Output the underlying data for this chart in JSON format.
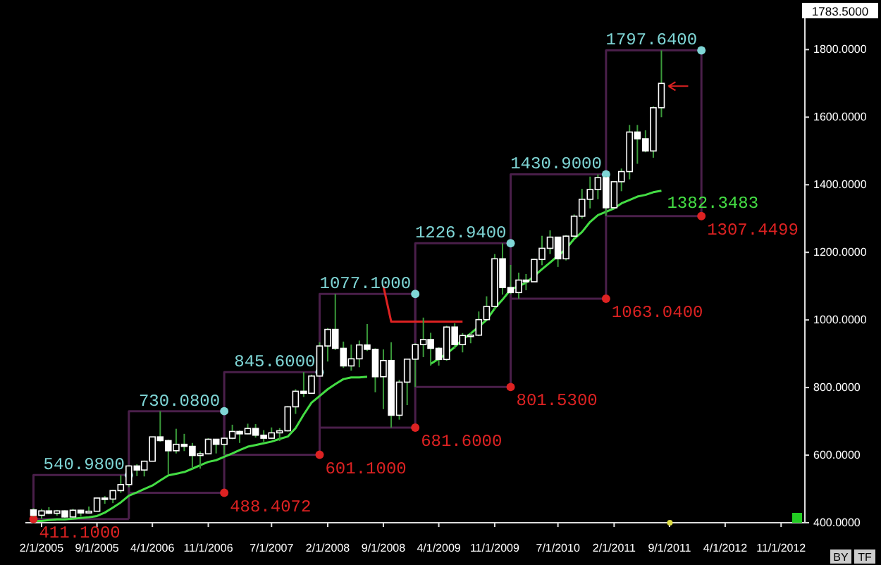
{
  "chart_data": {
    "type": "candlestick",
    "x": [
      "2005-01",
      "2005-02",
      "2005-03",
      "2005-04",
      "2005-05",
      "2005-06",
      "2005-07",
      "2005-08",
      "2005-09",
      "2005-10",
      "2005-11",
      "2005-12",
      "2006-01",
      "2006-02",
      "2006-03",
      "2006-04",
      "2006-05",
      "2006-06",
      "2006-07",
      "2006-08",
      "2006-09",
      "2006-10",
      "2006-11",
      "2006-12",
      "2007-01",
      "2007-02",
      "2007-03",
      "2007-04",
      "2007-05",
      "2007-06",
      "2007-07",
      "2007-08",
      "2007-09",
      "2007-10",
      "2007-11",
      "2007-12",
      "2008-01",
      "2008-02",
      "2008-03",
      "2008-04",
      "2008-05",
      "2008-06",
      "2008-07",
      "2008-08",
      "2008-09",
      "2008-10",
      "2008-11",
      "2008-12",
      "2009-01",
      "2009-02",
      "2009-03",
      "2009-04",
      "2009-05",
      "2009-06",
      "2009-07",
      "2009-08",
      "2009-09",
      "2009-10",
      "2009-11",
      "2009-12",
      "2010-01",
      "2010-02",
      "2010-03",
      "2010-04",
      "2010-05",
      "2010-06",
      "2010-07",
      "2010-08",
      "2010-09",
      "2010-10",
      "2010-11",
      "2010-12",
      "2011-01",
      "2011-02",
      "2011-03",
      "2011-04",
      "2011-05",
      "2011-06",
      "2011-07",
      "2011-08"
    ],
    "ohlc": [
      [
        438,
        443,
        418,
        422
      ],
      [
        422,
        441,
        411.1,
        435
      ],
      [
        435,
        446,
        425,
        428
      ],
      [
        428,
        438,
        421,
        435
      ],
      [
        435,
        437,
        414,
        417
      ],
      [
        417,
        441,
        414,
        437
      ],
      [
        437,
        438,
        418,
        429
      ],
      [
        429,
        448,
        428,
        434
      ],
      [
        434,
        474,
        433,
        473
      ],
      [
        473,
        479,
        456,
        470
      ],
      [
        470,
        497,
        458,
        495
      ],
      [
        495,
        540.98,
        488.4072,
        513
      ],
      [
        513,
        570,
        505,
        568
      ],
      [
        568,
        573,
        538,
        556
      ],
      [
        556,
        584,
        537,
        582
      ],
      [
        582,
        654,
        582,
        654
      ],
      [
        654,
        730.08,
        640,
        643
      ],
      [
        643,
        646,
        543,
        613
      ],
      [
        613,
        678,
        605,
        632
      ],
      [
        632,
        663,
        612,
        626
      ],
      [
        626,
        636,
        560,
        599
      ],
      [
        599,
        611,
        560,
        604
      ],
      [
        604,
        650,
        602,
        647
      ],
      [
        647,
        648,
        605,
        632
      ],
      [
        632,
        652,
        601.1,
        650
      ],
      [
        650,
        690,
        647,
        670
      ],
      [
        670,
        673,
        636,
        663
      ],
      [
        663,
        693,
        662,
        679
      ],
      [
        679,
        692,
        652,
        659
      ],
      [
        659,
        674,
        640,
        650
      ],
      [
        650,
        682,
        649,
        666
      ],
      [
        666,
        680,
        642,
        672
      ],
      [
        672,
        745,
        670,
        743
      ],
      [
        743,
        795,
        722,
        789
      ],
      [
        789,
        845.6,
        772,
        783
      ],
      [
        783,
        838,
        782,
        834
      ],
      [
        834,
        934,
        834,
        923
      ],
      [
        923,
        976,
        877,
        972
      ],
      [
        972,
        1077.1,
        911,
        916
      ],
      [
        916,
        936,
        858,
        864
      ],
      [
        864,
        927,
        850,
        885
      ],
      [
        885,
        939,
        860,
        926
      ],
      [
        926,
        988,
        908,
        913
      ],
      [
        913,
        916,
        786,
        832
      ],
      [
        832,
        913,
        736,
        880
      ],
      [
        880,
        934,
        681.6,
        718
      ],
      [
        718,
        823,
        705,
        816
      ],
      [
        816,
        885,
        748,
        884
      ],
      [
        884,
        931,
        801.53,
        927
      ],
      [
        927,
        1007,
        890,
        942
      ],
      [
        942,
        962,
        865,
        916
      ],
      [
        916,
        919,
        865,
        883
      ],
      [
        883,
        983,
        879,
        979
      ],
      [
        979,
        990,
        915,
        927
      ],
      [
        927,
        961,
        904,
        954
      ],
      [
        954,
        963,
        931,
        955
      ],
      [
        955,
        1025,
        952,
        1001
      ],
      [
        1001,
        1070,
        1000,
        1040
      ],
      [
        1040,
        1195,
        1030,
        1181
      ],
      [
        1181,
        1226.94,
        1075,
        1096
      ],
      [
        1096,
        1163,
        1076,
        1081
      ],
      [
        1081,
        1140,
        1063.04,
        1118
      ],
      [
        1118,
        1136,
        1088,
        1113
      ],
      [
        1113,
        1181,
        1113,
        1179
      ],
      [
        1179,
        1249,
        1162,
        1212
      ],
      [
        1212,
        1265,
        1195,
        1245
      ],
      [
        1245,
        1245,
        1157,
        1181
      ],
      [
        1181,
        1251,
        1176,
        1248
      ],
      [
        1248,
        1312,
        1242,
        1307
      ],
      [
        1307,
        1388,
        1300,
        1357
      ],
      [
        1357,
        1424,
        1330,
        1386
      ],
      [
        1386,
        1430.9,
        1357,
        1421
      ],
      [
        1421,
        1424,
        1307.4499,
        1332
      ],
      [
        1332,
        1411,
        1328,
        1409
      ],
      [
        1409,
        1448,
        1381,
        1439
      ],
      [
        1439,
        1577,
        1416,
        1556
      ],
      [
        1556,
        1577,
        1462,
        1536
      ],
      [
        1536,
        1561,
        1496,
        1500
      ],
      [
        1500,
        1632,
        1480,
        1628
      ],
      [
        1628,
        1797.64,
        1600,
        1700
      ]
    ],
    "series": [
      {
        "type": "line",
        "color": "#4a1f4a",
        "x": [
          "2005-01-01",
          "2005-01-01",
          "2006-01-01",
          "2006-01-01"
        ],
        "values": [
          411.1,
          540.98,
          540.98,
          411.1
        ]
      },
      {
        "type": "line",
        "color": "#4a1f4a",
        "x": [
          "2006-01-01",
          "2006-01-01",
          "2007-01-01",
          "2007-01-01"
        ],
        "values": [
          488.4072,
          730.08,
          730.08,
          488.4072
        ]
      },
      {
        "type": "line",
        "color": "#4a1f4a",
        "x": [
          "2007-01-01",
          "2007-01-01",
          "2008-01-01",
          "2008-01-01"
        ],
        "values": [
          601.1,
          845.6,
          845.6,
          601.1
        ]
      },
      {
        "type": "line",
        "color": "#4a1f4a",
        "x": [
          "2008-01-01",
          "2008-01-01",
          "2009-01-01",
          "2009-01-01"
        ],
        "values": [
          681.6,
          1077.1,
          1077.1,
          681.6
        ]
      },
      {
        "type": "line",
        "color": "#4a1f4a",
        "x": [
          "2009-01-01",
          "2009-01-01",
          "2010-01-01",
          "2010-01-01"
        ],
        "values": [
          801.53,
          1226.94,
          1226.94,
          801.53
        ]
      },
      {
        "type": "line",
        "color": "#4a1f4a",
        "x": [
          "2010-01-01",
          "2010-01-01",
          "2011-01-01",
          "2011-01-01"
        ],
        "values": [
          1063.04,
          1430.9,
          1430.9,
          1063.04
        ]
      },
      {
        "type": "line",
        "color": "#4a1f4a",
        "x": [
          "2011-01-01",
          "2011-01-01",
          "2012-01-01",
          "2012-01-01"
        ],
        "values": [
          1307.4499,
          1797.64,
          1797.64,
          1307.4499
        ]
      },
      {
        "type": "line",
        "color": "#4a1f4a",
        "x": [
          "2005-01-01",
          "2006-01-01"
        ],
        "values": [
          411.1,
          411.1
        ]
      },
      {
        "type": "line",
        "color": "#4a1f4a",
        "x": [
          "2006-01-01",
          "2007-01-01"
        ],
        "values": [
          488.4072,
          488.4072
        ]
      },
      {
        "type": "line",
        "color": "#4a1f4a",
        "x": [
          "2007-01-01",
          "2008-01-01"
        ],
        "values": [
          601.1,
          601.1
        ]
      },
      {
        "type": "line",
        "color": "#4a1f4a",
        "x": [
          "2008-01-01",
          "2009-01-01"
        ],
        "values": [
          681.6,
          681.6
        ]
      },
      {
        "type": "line",
        "color": "#4a1f4a",
        "x": [
          "2009-01-01",
          "2010-01-01"
        ],
        "values": [
          801.53,
          801.53
        ]
      },
      {
        "type": "line",
        "color": "#4a1f4a",
        "x": [
          "2010-01-01",
          "2011-01-01"
        ],
        "values": [
          1063.04,
          1063.04
        ]
      },
      {
        "type": "line",
        "color": "#4a1f4a",
        "x": [
          "2011-01-01",
          "2012-01-01"
        ],
        "values": [
          1307.4499,
          1307.4499
        ]
      },
      {
        "type": "line",
        "color": "#44dd44",
        "x": [
          "2005-01",
          "2005-02",
          "2005-03",
          "2005-04",
          "2005-05",
          "2005-06",
          "2005-07",
          "2005-08",
          "2005-09",
          "2005-10",
          "2005-11",
          "2005-12",
          "2006-01",
          "2006-02",
          "2006-03",
          "2006-04",
          "2006-05",
          "2006-06",
          "2006-07",
          "2006-08",
          "2006-09",
          "2006-10",
          "2006-11",
          "2006-12",
          "2007-01",
          "2007-02",
          "2007-03",
          "2007-04",
          "2007-05",
          "2007-06",
          "2007-07",
          "2007-08",
          "2007-09",
          "2007-10",
          "2007-11",
          "2007-12",
          "2008-01",
          "2008-02",
          "2008-03",
          "2008-04",
          "2008-05",
          "2008-06",
          "2008-07",
          "2008-08",
          "2008-09",
          "2008-10",
          "2008-11",
          "2008-12",
          "2009-01",
          "2009-02",
          "2009-03",
          "2009-04",
          "2009-05",
          "2009-06",
          "2009-07",
          "2009-08",
          "2009-09",
          "2009-10",
          "2009-11",
          "2009-12",
          "2010-01",
          "2010-02",
          "2010-03",
          "2010-04",
          "2010-05",
          "2010-06",
          "2010-07",
          "2010-08",
          "2010-09",
          "2010-10",
          "2010-11",
          "2010-12",
          "2011-01",
          "2011-02",
          "2011-03",
          "2011-04",
          "2011-05",
          "2011-06",
          "2011-07",
          "2011-08"
        ],
        "values": [
          405,
          405,
          408,
          410,
          410,
          412,
          414,
          416,
          420,
          430,
          445,
          460,
          480,
          490,
          500,
          510,
          525,
          540,
          545,
          550,
          560,
          570,
          580,
          585,
          595,
          605,
          615,
          625,
          630,
          635,
          640,
          648,
          655,
          680,
          720,
          755,
          775,
          795,
          810,
          825,
          830,
          830,
          832,
          null,
          null,
          null,
          null,
          null,
          null,
          null,
          870,
          885,
          900,
          920,
          942,
          960,
          980,
          1000,
          1034,
          1060,
          1090,
          1100,
          1110,
          1130,
          1150,
          1170,
          1190,
          1210,
          1240,
          1260,
          1290,
          1310,
          1320,
          1330,
          1345,
          1355,
          1365,
          1370,
          1378,
          1382.3483
        ],
        "value_labels": [
          null,
          null,
          null,
          null,
          null,
          null,
          null,
          null,
          null,
          null,
          null,
          null,
          null,
          null,
          null,
          null,
          null,
          null,
          null,
          null,
          null,
          null,
          null,
          null,
          null,
          null,
          null,
          null,
          null,
          null,
          null,
          null,
          null,
          null,
          null,
          null,
          null,
          null,
          null,
          null,
          null,
          null,
          null,
          null,
          null,
          null,
          null,
          null,
          null,
          null,
          null,
          null,
          null,
          null,
          null,
          null,
          null,
          null,
          null,
          null,
          null,
          null,
          null,
          null,
          null,
          null,
          null,
          null,
          null,
          null,
          null,
          null,
          null,
          null,
          null,
          null,
          null,
          null,
          null,
          "1382.3483"
        ]
      },
      {
        "type": "line",
        "color": "#dd2222",
        "x": [
          "2008-09",
          "2008-10",
          "2008-11",
          "2008-12",
          "2009-01",
          "2009-02",
          "2009-03",
          "2009-04",
          "2009-05",
          "2009-06",
          "2009-07"
        ],
        "values": [
          1100,
          995,
          995,
          995,
          995,
          995,
          995,
          995,
          995,
          995,
          995
        ]
      },
      {
        "type": "scatter",
        "marker": "circle",
        "color": "#7fd6d6",
        "x": [
          "2006-01-01",
          "2007-01-01",
          "2008-01-01",
          "2009-01-01",
          "2010-01-01",
          "2011-01-01",
          "2012-01-01"
        ],
        "values": [
          540.98,
          730.08,
          845.6,
          1077.1,
          1226.94,
          1430.9,
          1797.64
        ],
        "value_labels": [
          "540.9800",
          "730.0800",
          "845.6000",
          "1077.1000",
          "1226.9400",
          "1430.9000",
          "1797.6400"
        ]
      },
      {
        "type": "scatter",
        "marker": "circle",
        "color": "#dd2222",
        "x": [
          "2005-01-01",
          "2007-01-01",
          "2008-01-01",
          "2009-01-01",
          "2010-01-01",
          "2011-01-01",
          "2012-01-01"
        ],
        "values": [
          411.1,
          488.4072,
          601.1,
          681.6,
          801.53,
          1063.04,
          1307.4499
        ],
        "value_labels": [
          "411.1000",
          "488.4072",
          "601.1000",
          "681.6000",
          "801.5300",
          "1063.0400",
          "1307.4499"
        ]
      }
    ],
    "xlim": [
      "2004-12-01",
      "2013-01-31"
    ],
    "xticks": [
      {
        "value": "2005-02-01",
        "label": "2/1/2005"
      },
      {
        "value": "2005-09-01",
        "label": "9/1/2005"
      },
      {
        "value": "2006-04-01",
        "label": "4/1/2006"
      },
      {
        "value": "2006-11-01",
        "label": "11/1/2006"
      },
      {
        "value": "2007-07-01",
        "label": "7/1/2007"
      },
      {
        "value": "2008-02-01",
        "label": "2/1/2008"
      },
      {
        "value": "2008-09-01",
        "label": "9/1/2008"
      },
      {
        "value": "2009-04-01",
        "label": "4/1/2009"
      },
      {
        "value": "2009-11-01",
        "label": "11/1/2009"
      },
      {
        "value": "2010-07-01",
        "label": "7/1/2010"
      },
      {
        "value": "2011-02-01",
        "label": "2/1/2011"
      },
      {
        "value": "2011-09-01",
        "label": "9/1/2011"
      },
      {
        "value": "2012-04-01",
        "label": "4/1/2012"
      },
      {
        "value": "2012-11-01",
        "label": "11/1/2012"
      }
    ],
    "ylim": [
      400,
      1930
    ],
    "yticks": [
      {
        "value": 400,
        "label": "400.0000"
      },
      {
        "value": 600,
        "label": "600.0000"
      },
      {
        "value": 800,
        "label": "800.0000"
      },
      {
        "value": 1000,
        "label": "1000.0000"
      },
      {
        "value": 1200,
        "label": "1200.0000"
      },
      {
        "value": 1400,
        "label": "1400.0000"
      },
      {
        "value": 1600,
        "label": "1600.0000"
      },
      {
        "value": 1800,
        "label": "1800.0000"
      }
    ],
    "annotations": [
      "1783.5000",
      "BY",
      "TF"
    ],
    "grid": false,
    "marker": "none"
  }
}
